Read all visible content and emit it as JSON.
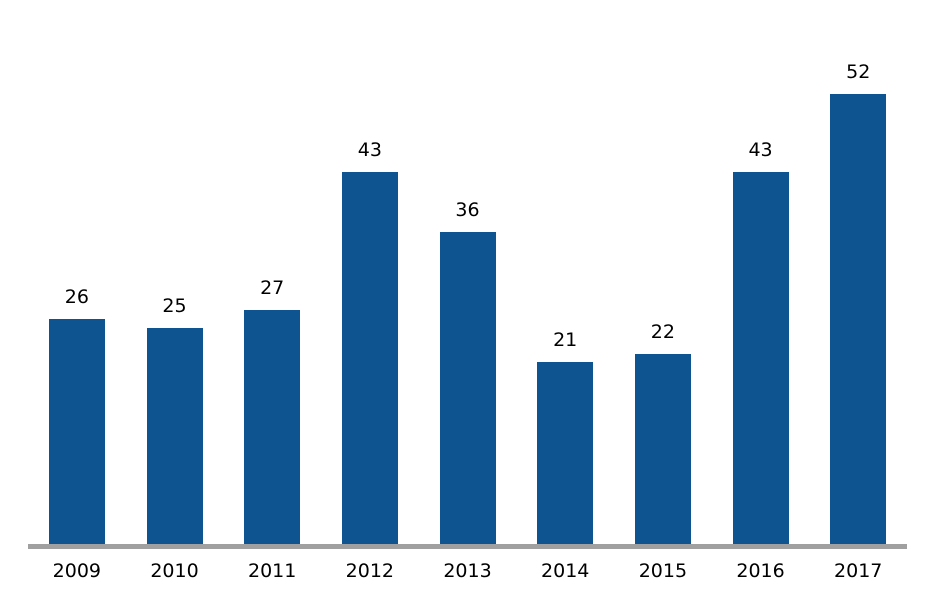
{
  "chart_data": {
    "type": "bar",
    "title": "",
    "xlabel": "",
    "ylabel": "",
    "categories": [
      "2009",
      "2010",
      "2011",
      "2012",
      "2013",
      "2014",
      "2015",
      "2016",
      "2017"
    ],
    "values": [
      26,
      25,
      27,
      43,
      36,
      21,
      22,
      43,
      52
    ],
    "ylim": [
      0,
      52
    ],
    "grid": false,
    "legend": "none",
    "data_labels_shown": true,
    "colors": {
      "bar": "#0E5491",
      "axis_line": "#A0A0A0",
      "label_text": "#000000",
      "background": "#FFFFFF"
    }
  }
}
